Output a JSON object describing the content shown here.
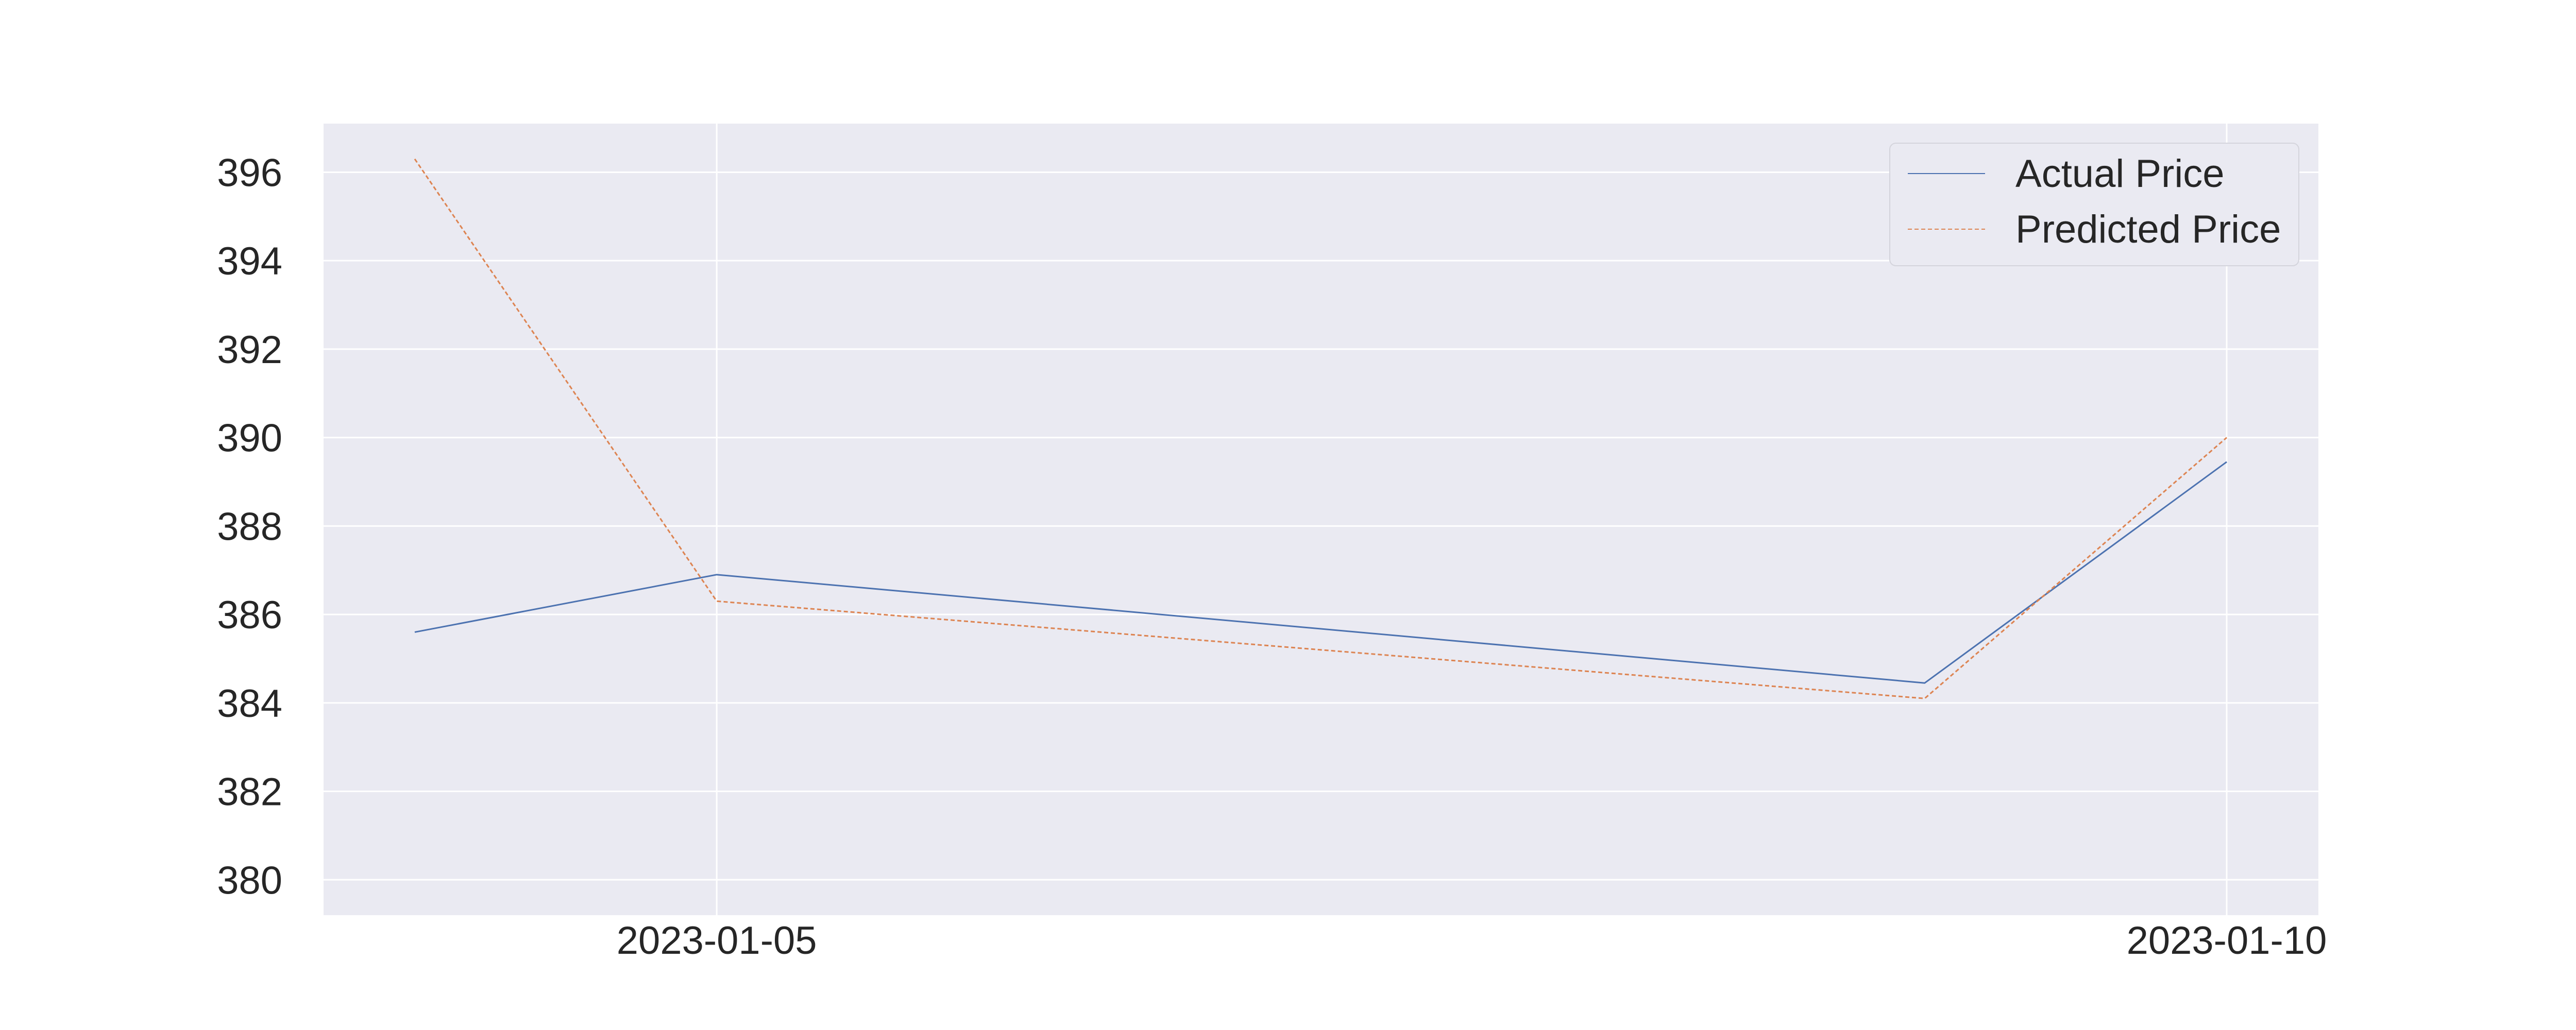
{
  "chart_data": {
    "type": "line",
    "x": [
      "2023-01-04",
      "2023-01-05",
      "2023-01-06",
      "2023-01-09",
      "2023-01-10"
    ],
    "series": [
      {
        "name": "Actual Price",
        "values": [
          385.6,
          386.9,
          null,
          384.45,
          389.45
        ],
        "color": "#4c72b0",
        "style": "solid"
      },
      {
        "name": "Predicted Price",
        "values": [
          396.3,
          386.3,
          null,
          384.1,
          390.0
        ],
        "color": "#dd8452",
        "style": "dashed"
      }
    ],
    "x_ticks": [
      "2023-01-05",
      "2023-01-10"
    ],
    "y_ticks": [
      380,
      382,
      384,
      386,
      388,
      390,
      392,
      394,
      396
    ],
    "ylim": [
      379.2,
      397.1
    ],
    "grid": true,
    "legend_position": "top-right",
    "background": "#eaeaf2"
  }
}
